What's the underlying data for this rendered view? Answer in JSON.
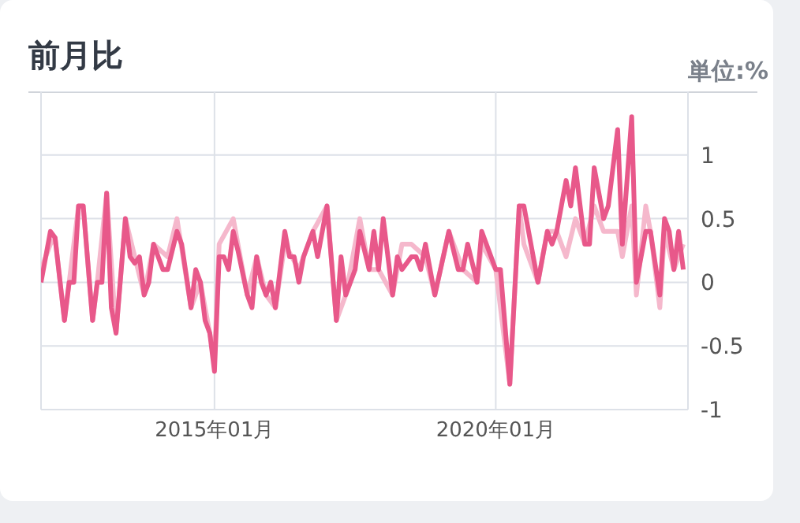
{
  "chart_data": {
    "type": "line",
    "title": "前月比",
    "ylabel": "単位:%",
    "xlim": [
      "2011-12",
      "2023-06"
    ],
    "xticks": [
      {
        "value": "2015-01",
        "label": "2015年01月"
      },
      {
        "value": "2020-01",
        "label": "2020年01月"
      }
    ],
    "ylim": [
      -1,
      1.5
    ],
    "yticks": [
      -1,
      -0.5,
      0,
      0.5,
      1
    ],
    "grid": true,
    "marker": "none",
    "line_style": "solid",
    "series": [
      {
        "color": "#f5b8cc",
        "x": [
          "2011-12",
          "2012-02",
          "2012-03",
          "2012-05",
          "2012-06",
          "2012-08",
          "2012-09",
          "2012-11",
          "2012-12",
          "2013-02",
          "2013-04",
          "2013-06",
          "2013-08",
          "2013-10",
          "2013-12",
          "2014-03",
          "2014-05",
          "2014-08",
          "2014-10",
          "2014-12",
          "2015-01",
          "2015-02",
          "2015-05",
          "2015-08",
          "2015-10",
          "2015-12",
          "2016-02",
          "2016-04",
          "2016-07",
          "2016-10",
          "2017-01",
          "2017-03",
          "2017-05",
          "2017-08",
          "2017-10",
          "2017-12",
          "2018-03",
          "2018-05",
          "2018-07",
          "2018-10",
          "2018-12",
          "2019-03",
          "2019-06",
          "2019-09",
          "2019-10",
          "2020-01",
          "2020-04",
          "2020-06",
          "2020-07",
          "2020-10",
          "2020-12",
          "2021-02",
          "2021-04",
          "2021-06",
          "2021-08",
          "2021-10",
          "2021-12",
          "2022-01",
          "2022-03",
          "2022-04",
          "2022-06",
          "2022-07",
          "2022-09",
          "2022-10",
          "2022-12",
          "2023-01",
          "2023-03",
          "2023-05"
        ],
        "values": [
          0.1,
          0.3,
          0.35,
          -0.3,
          0,
          0.6,
          0.6,
          -0.3,
          0,
          0.7,
          -0.4,
          0.5,
          0.2,
          -0.1,
          0.3,
          0.2,
          0.5,
          -0.2,
          0,
          -0.4,
          -0.6,
          0.3,
          0.5,
          -0.1,
          0.2,
          -0.1,
          -0.2,
          0.3,
          0.1,
          0.4,
          0.6,
          -0.3,
          -0.1,
          0.5,
          0.1,
          0.1,
          -0.1,
          0.3,
          0.3,
          0.2,
          -0.1,
          0.4,
          0.1,
          0,
          0.3,
          0.1,
          -0.8,
          0.6,
          0.3,
          0,
          0.4,
          0.4,
          0.2,
          0.5,
          0.3,
          0.6,
          0.4,
          0.4,
          0.4,
          0.2,
          0.6,
          -0.1,
          0.6,
          0.4,
          -0.2,
          0.4,
          0.1,
          0.3
        ]
      },
      {
        "color": "#e8588a",
        "x": [
          "2011-12",
          "2012-02",
          "2012-03",
          "2012-05",
          "2012-06",
          "2012-07",
          "2012-08",
          "2012-09",
          "2012-11",
          "2012-12",
          "2013-01",
          "2013-02",
          "2013-03",
          "2013-04",
          "2013-06",
          "2013-07",
          "2013-08",
          "2013-09",
          "2013-10",
          "2013-11",
          "2013-12",
          "2014-02",
          "2014-03",
          "2014-05",
          "2014-06",
          "2014-08",
          "2014-09",
          "2014-10",
          "2014-11",
          "2014-12",
          "2015-01",
          "2015-02",
          "2015-03",
          "2015-04",
          "2015-05",
          "2015-06",
          "2015-08",
          "2015-09",
          "2015-10",
          "2015-11",
          "2015-12",
          "2016-01",
          "2016-02",
          "2016-04",
          "2016-05",
          "2016-06",
          "2016-07",
          "2016-08",
          "2016-10",
          "2016-11",
          "2017-01",
          "2017-03",
          "2017-04",
          "2017-05",
          "2017-07",
          "2017-08",
          "2017-10",
          "2017-11",
          "2017-12",
          "2018-01",
          "2018-03",
          "2018-04",
          "2018-05",
          "2018-07",
          "2018-08",
          "2018-09",
          "2018-10",
          "2018-12",
          "2019-03",
          "2019-05",
          "2019-06",
          "2019-07",
          "2019-09",
          "2019-10",
          "2019-12",
          "2020-01",
          "2020-02",
          "2020-04",
          "2020-06",
          "2020-07",
          "2020-10",
          "2020-12",
          "2021-01",
          "2021-02",
          "2021-04",
          "2021-05",
          "2021-06",
          "2021-08",
          "2021-09",
          "2021-10",
          "2021-12",
          "2022-01",
          "2022-03",
          "2022-04",
          "2022-06",
          "2022-07",
          "2022-09",
          "2022-10",
          "2022-12",
          "2023-01",
          "2023-02",
          "2023-03",
          "2023-04",
          "2023-05"
        ],
        "values": [
          0,
          0.4,
          0.35,
          -0.3,
          0,
          0,
          0.6,
          0.6,
          -0.3,
          0,
          0,
          0.7,
          -0.2,
          -0.4,
          0.5,
          0.2,
          0.15,
          0.2,
          -0.1,
          0,
          0.3,
          0.1,
          0.1,
          0.4,
          0.3,
          -0.2,
          0.1,
          0,
          -0.3,
          -0.4,
          -0.7,
          0.2,
          0.2,
          0.1,
          0.4,
          0.25,
          -0.1,
          -0.2,
          0.2,
          0,
          -0.1,
          0,
          -0.2,
          0.4,
          0.2,
          0.2,
          0,
          0.2,
          0.4,
          0.2,
          0.6,
          -0.3,
          0.2,
          -0.1,
          0.1,
          0.4,
          0.1,
          0.4,
          0.1,
          0.5,
          -0.1,
          0.2,
          0.1,
          0.2,
          0.2,
          0.1,
          0.3,
          -0.1,
          0.4,
          0.1,
          0.1,
          0.3,
          0,
          0.4,
          0.2,
          0.1,
          0.1,
          -0.8,
          0.6,
          0.6,
          0,
          0.4,
          0.3,
          0.4,
          0.8,
          0.6,
          0.9,
          0.3,
          0.3,
          0.9,
          0.5,
          0.6,
          1.2,
          0.3,
          1.3,
          0,
          0.4,
          0.4,
          -0.1,
          0.5,
          0.4,
          0.1,
          0.4,
          0.1
        ]
      }
    ]
  }
}
